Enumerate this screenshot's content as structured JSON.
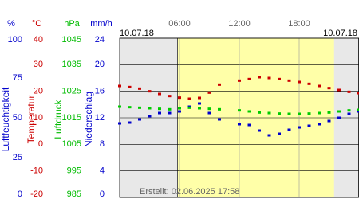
{
  "chart_data": {
    "type": "scatter",
    "date_left": "10.07.18",
    "date_right": "10.07.18",
    "created": "Erstellt: 02.06.2025 17:58",
    "xlim": [
      0,
      24
    ],
    "xticks": [
      {
        "value": 6,
        "label": "06:00"
      },
      {
        "value": 12,
        "label": "12:00"
      },
      {
        "value": 18,
        "label": "18:00"
      }
    ],
    "daylight": [
      5.8,
      21.5
    ],
    "daylight_color": "#ffffa8",
    "night_color": "#e8e8e8",
    "grid": true,
    "axes": [
      {
        "unit": "%",
        "label": "Luftfeuchtigkeit",
        "color": "#0000cc",
        "ylim": [
          0,
          100
        ],
        "yticks": [
          0,
          25,
          50,
          75,
          100
        ]
      },
      {
        "unit": "°C",
        "label": "Temperatur",
        "color": "#cc0000",
        "ylim": [
          -20,
          40
        ],
        "yticks": [
          -20,
          -10,
          0,
          10,
          20,
          30,
          40
        ]
      },
      {
        "unit": "hPa",
        "label": "Luftdruck",
        "color": "#00bb00",
        "ylim": [
          985,
          1045
        ],
        "yticks": [
          985,
          995,
          1005,
          1015,
          1025,
          1035,
          1045
        ]
      },
      {
        "unit": "mm/h",
        "label": "Niederschlag",
        "color": "#0000cc",
        "ylim": [
          0,
          24
        ],
        "yticks": [
          0,
          4,
          8,
          12,
          16,
          20,
          24
        ]
      }
    ],
    "x": [
      0,
      1,
      2,
      3,
      4,
      5,
      6,
      7,
      8,
      9,
      10,
      11,
      12,
      13,
      14,
      15,
      16,
      17,
      18,
      19,
      20,
      21,
      22,
      23,
      24
    ],
    "series": [
      {
        "axis": 1,
        "color": "#cc0000",
        "values": [
          22,
          21.6,
          21,
          20,
          19,
          18.2,
          17.6,
          17.2,
          17.5,
          19.5,
          22.5,
          null,
          24,
          24.6,
          25.3,
          25,
          24.6,
          24,
          23.5,
          22.8,
          22,
          21.2,
          20.5,
          19.8,
          19.3
        ]
      },
      {
        "axis": 0,
        "color": "#0000cc",
        "values": [
          46.5,
          47,
          49,
          51,
          53,
          53,
          54,
          57,
          59,
          53,
          49,
          null,
          46,
          45.5,
          42,
          39,
          40,
          42.5,
          44,
          45,
          46,
          48,
          50,
          52.5,
          54
        ]
      },
      {
        "axis": 2,
        "color": "#00cc00",
        "values": [
          1019.2,
          1019,
          1018.8,
          1018.6,
          1018.4,
          1018.2,
          1018.6,
          1018.8,
          1018.6,
          1018.4,
          1018.2,
          null,
          1017.8,
          1017.4,
          1017,
          1016.8,
          1016.6,
          1016.5,
          1016.5,
          1016.6,
          1016.8,
          1017,
          1017.4,
          1017.8,
          1018
        ]
      }
    ]
  }
}
